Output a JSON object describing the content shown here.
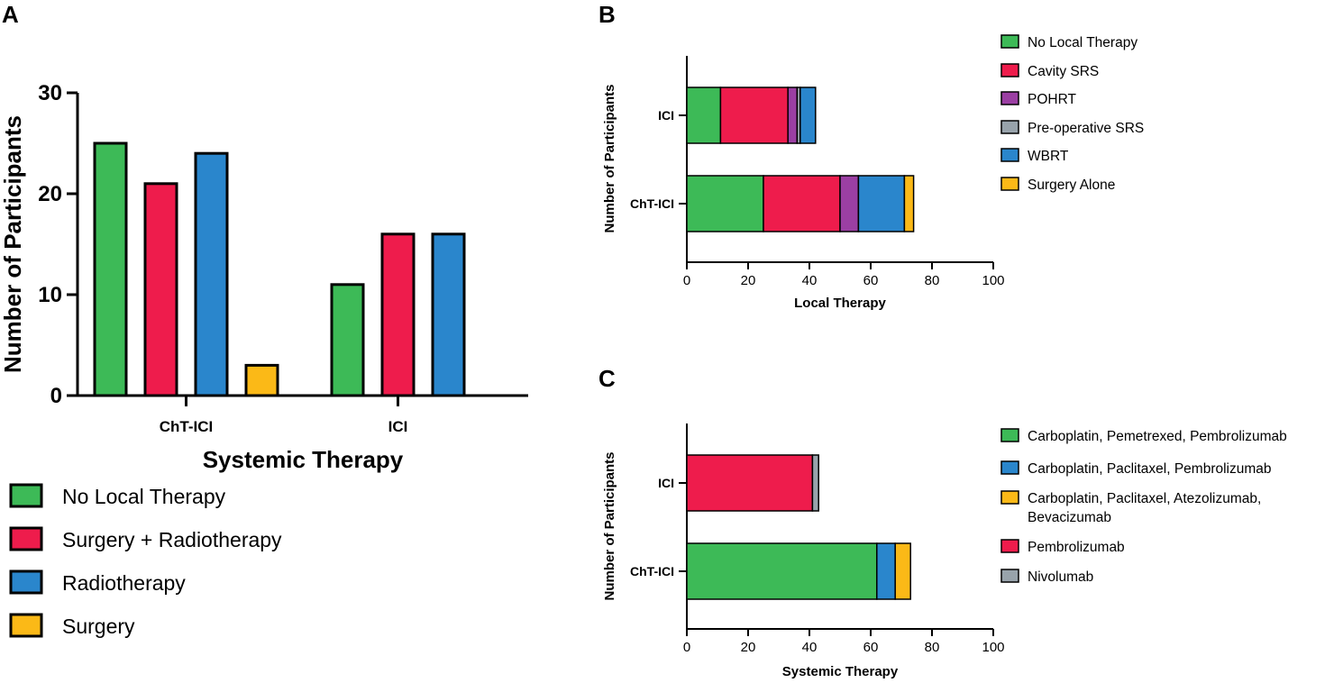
{
  "chart_data": [
    {
      "panel": "A",
      "type": "bar",
      "orientation": "vertical",
      "xlabel": "Systemic Therapy",
      "ylabel": "Number of Participants",
      "ylim": [
        0,
        30
      ],
      "yticks": [
        0,
        10,
        20,
        30
      ],
      "categories": [
        "ChT-ICI",
        "ICI"
      ],
      "series": [
        {
          "name": "No Local Therapy",
          "color": "#3dba57",
          "values": [
            25,
            11
          ]
        },
        {
          "name": "Surgery + Radiotherapy",
          "color": "#ee1c4c",
          "values": [
            21,
            16
          ]
        },
        {
          "name": "Radiotherapy",
          "color": "#2a86cc",
          "values": [
            24,
            16
          ]
        },
        {
          "name": "Surgery",
          "color": "#fbb917",
          "values": [
            3,
            null
          ]
        }
      ],
      "legend_position": "bottom-left"
    },
    {
      "panel": "B",
      "type": "bar",
      "orientation": "horizontal",
      "stacked": true,
      "xlabel": "Local Therapy",
      "ylabel": "Number of Participants",
      "xlim": [
        0,
        100
      ],
      "xticks": [
        0,
        20,
        40,
        60,
        80,
        100
      ],
      "categories": [
        "ICI",
        "ChT-ICI"
      ],
      "series": [
        {
          "name": "No Local Therapy",
          "color": "#3dba57",
          "values": [
            11,
            25
          ]
        },
        {
          "name": "Cavity SRS",
          "color": "#ee1c4c",
          "values": [
            22,
            25
          ]
        },
        {
          "name": "POHRT",
          "color": "#9b3fa3",
          "values": [
            3,
            6
          ]
        },
        {
          "name": "Pre-operative SRS",
          "color": "#98a3ab",
          "values": [
            1,
            0
          ]
        },
        {
          "name": "WBRT",
          "color": "#2a86cc",
          "values": [
            5,
            15
          ]
        },
        {
          "name": "Surgery Alone",
          "color": "#fbb917",
          "values": [
            0,
            3
          ]
        }
      ],
      "legend_position": "right"
    },
    {
      "panel": "C",
      "type": "bar",
      "orientation": "horizontal",
      "stacked": true,
      "xlabel": "Systemic Therapy",
      "ylabel": "Number of Participants",
      "xlim": [
        0,
        100
      ],
      "xticks": [
        0,
        20,
        40,
        60,
        80,
        100
      ],
      "categories": [
        "ICI",
        "ChT-ICI"
      ],
      "series": [
        {
          "name": "Carboplatin, Pemetrexed, Pembrolizumab",
          "color": "#3dba57",
          "values": [
            0,
            62
          ]
        },
        {
          "name": "Carboplatin, Paclitaxel, Pembrolizumab",
          "color": "#2a86cc",
          "values": [
            0,
            6
          ]
        },
        {
          "name": "Carboplatin, Paclitaxel, Atezolizumab, Bevacizumab",
          "color": "#fbb917",
          "values": [
            0,
            5
          ]
        },
        {
          "name": "Pembrolizumab",
          "color": "#ee1c4c",
          "values": [
            41,
            0
          ]
        },
        {
          "name": "Nivolumab",
          "color": "#98a3ab",
          "values": [
            2,
            0
          ]
        }
      ],
      "legend_position": "right"
    }
  ]
}
